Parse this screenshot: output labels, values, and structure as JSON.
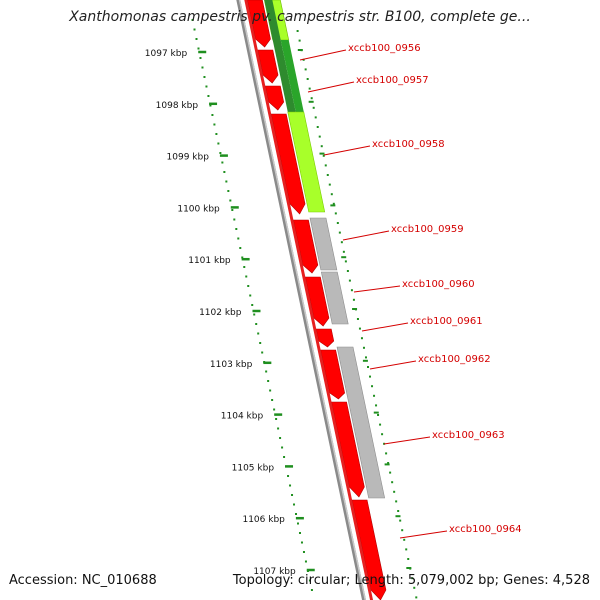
{
  "title": "Xanthomonas campestris pv. campestris str. B100, complete ge...",
  "footer": {
    "accession": "Accession: NC_010688",
    "genome_info": "Topology: circular; Length: 5,079,002 bp; Genes: 4,528"
  },
  "axis": {
    "unit": "kbp",
    "ticks": [
      "1097 kbp",
      "1098 kbp",
      "1099 kbp",
      "1100 kbp",
      "1101 kbp",
      "1102 kbp",
      "1103 kbp",
      "1104 kbp",
      "1105 kbp",
      "1106 kbp",
      "1107 kbp"
    ]
  },
  "colors": {
    "cds": "#ff0000",
    "cds_dark": "#b40000",
    "backbone": "#8a8a8a",
    "label": "#d40000",
    "tick_green": "#1f8f1f",
    "grey_feature": "#b9b9b9",
    "lime_feature": "#a8ff2a",
    "dark_green_feature": "#2e8b2e"
  },
  "gene_labels": [
    "xccb100_0956",
    "xccb100_0957",
    "xccb100_0958",
    "xccb100_0959",
    "xccb100_0960",
    "xccb100_0961",
    "xccb100_0962",
    "xccb100_0963",
    "xccb100_0964"
  ]
}
